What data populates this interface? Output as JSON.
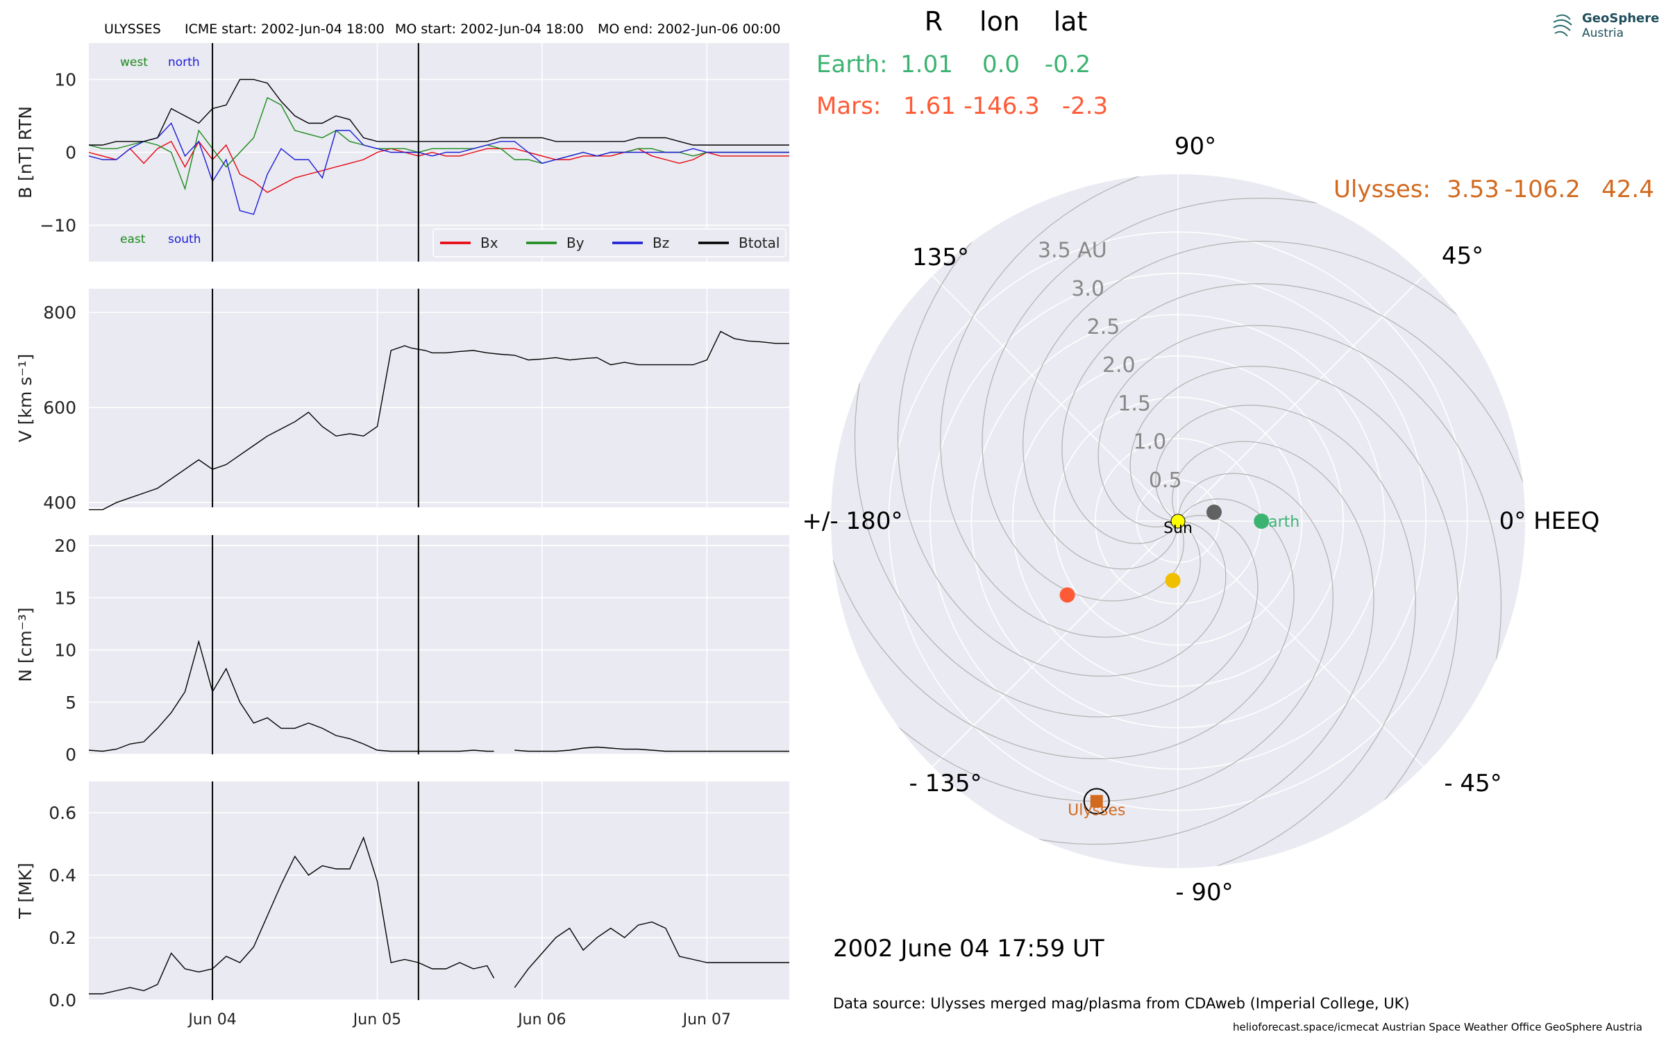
{
  "header": {
    "spacecraft": "ULYSSES",
    "icme_start": "ICME start: 2002-Jun-04 18:00",
    "mo_start": "MO start: 2002-Jun-04 18:00",
    "mo_end": "MO end: 2002-Jun-06 00:00"
  },
  "colors": {
    "panel_bg": "#eaeaf2",
    "grid": "#ffffff",
    "bx": "#e8000b",
    "by": "#1a8a1a",
    "bz": "#1b1bd6",
    "btotal": "#000000",
    "earth": "#3cb371",
    "mars": "#ff5a36",
    "ulysses": "#d2691e",
    "venus": "#f0c000",
    "mercury": "#616161",
    "sun": "#ffff00"
  },
  "chart_data": [
    {
      "type": "line",
      "panel": "magnetic_field",
      "ylabel": "B [nT] RTN",
      "ylim": [
        -15,
        15
      ],
      "yticks": [
        -10,
        0,
        10
      ],
      "xlim": [
        0,
        102
      ],
      "grid": true,
      "corner_labels": {
        "west": "west",
        "north": "north",
        "east": "east",
        "south": "south"
      },
      "legend": {
        "placement": "lower-right",
        "entries": [
          "Bx",
          "By",
          "Bz",
          "Btotal"
        ]
      },
      "x_hours": [
        0,
        2,
        4,
        6,
        8,
        10,
        12,
        14,
        16,
        18,
        20,
        22,
        24,
        26,
        28,
        30,
        32,
        34,
        36,
        38,
        40,
        42,
        44,
        46,
        48,
        50,
        52,
        54,
        56,
        58,
        60,
        62,
        64,
        66,
        68,
        70,
        72,
        74,
        76,
        78,
        80,
        82,
        84,
        86,
        88,
        90,
        92,
        94,
        96,
        98,
        100,
        102
      ],
      "series": [
        {
          "name": "Bx",
          "values": [
            0,
            -0.5,
            -1,
            0.5,
            -1.5,
            0.5,
            1.5,
            -2,
            1.5,
            -1,
            1,
            -3,
            -4,
            -5.5,
            -4.5,
            -3.5,
            -3,
            -2.5,
            -2,
            -1.5,
            -1,
            0,
            0.5,
            0,
            -0.5,
            0,
            -0.5,
            -0.5,
            0,
            0.5,
            0.5,
            0.5,
            0,
            -0.5,
            -1,
            -1,
            -0.5,
            -0.5,
            -0.5,
            0,
            0.5,
            -0.5,
            -1,
            -1.5,
            -1,
            0,
            -0.5,
            -0.5,
            -0.5,
            -0.5,
            -0.5,
            -0.5
          ]
        },
        {
          "name": "By",
          "values": [
            1,
            0.5,
            0.5,
            1,
            1.5,
            1,
            0,
            -5,
            3,
            0.5,
            -2,
            0,
            2,
            7.5,
            6.5,
            3,
            2.5,
            2,
            3,
            1.5,
            1,
            0.5,
            0.5,
            0.5,
            0,
            0.5,
            0.5,
            0.5,
            0.5,
            1,
            0.5,
            -1,
            -1,
            -1.5,
            -1,
            -0.5,
            0,
            -0.5,
            0,
            0,
            0.5,
            0.5,
            0,
            0,
            -0.5,
            0,
            0,
            0,
            0,
            0,
            0,
            0
          ]
        },
        {
          "name": "Bz",
          "values": [
            -0.5,
            -1,
            -1,
            0.5,
            1.5,
            2,
            4,
            -0.5,
            1.5,
            -4,
            -1,
            -8,
            -8.5,
            -3,
            0.5,
            -1,
            -1,
            -3.5,
            3,
            3,
            1,
            0.5,
            0,
            0,
            0,
            -0.5,
            0,
            0,
            0.5,
            1,
            1.5,
            1.5,
            0,
            -1.5,
            -1,
            -0.5,
            0,
            -0.5,
            0,
            0,
            0,
            0,
            0,
            0,
            0.5,
            0,
            0,
            0,
            0,
            0,
            0,
            0
          ]
        },
        {
          "name": "Btotal",
          "values": [
            1,
            1,
            1.5,
            1.5,
            1.5,
            2,
            6,
            5,
            4,
            6,
            6.5,
            10,
            10,
            9.5,
            7,
            5,
            4,
            4,
            5,
            4.5,
            2,
            1.5,
            1.5,
            1.5,
            1.5,
            1.5,
            1.5,
            1.5,
            1.5,
            1.5,
            2,
            2,
            2,
            2,
            1.5,
            1.5,
            1.5,
            1.5,
            1.5,
            1.5,
            2,
            2,
            2,
            1.5,
            1,
            1,
            1,
            1,
            1,
            1,
            1,
            1
          ]
        }
      ]
    },
    {
      "type": "line",
      "panel": "speed",
      "ylabel": "V [km s⁻¹]",
      "ylim": [
        390,
        850
      ],
      "yticks": [
        400,
        600,
        800
      ],
      "xlim": [
        0,
        102
      ],
      "grid": true,
      "series": [
        {
          "name": "V",
          "x": [
            0,
            2,
            4,
            6,
            8,
            10,
            12,
            14,
            16,
            18,
            20,
            22,
            24,
            26,
            28,
            30,
            32,
            34,
            36,
            38,
            40,
            42,
            44,
            46,
            47,
            49,
            50,
            52,
            54,
            56,
            58,
            60,
            62,
            64,
            66,
            68,
            70,
            72,
            74,
            76,
            78,
            80,
            82,
            84,
            86,
            88,
            90,
            92,
            94,
            96,
            98,
            100,
            102
          ],
          "values": [
            385,
            385,
            400,
            410,
            420,
            430,
            450,
            470,
            490,
            470,
            480,
            500,
            520,
            540,
            555,
            570,
            590,
            560,
            540,
            545,
            540,
            560,
            720,
            730,
            725,
            720,
            715,
            715,
            718,
            720,
            715,
            712,
            710,
            700,
            702,
            705,
            700,
            703,
            705,
            690,
            695,
            690,
            690,
            690,
            690,
            690,
            700,
            760,
            745,
            740,
            738,
            735,
            735
          ]
        }
      ],
      "gap_after_hour": 59
    },
    {
      "type": "line",
      "panel": "density",
      "ylabel": "N [cm⁻³]",
      "ylim": [
        0,
        21
      ],
      "yticks": [
        0,
        5,
        10,
        15,
        20
      ],
      "xlim": [
        0,
        102
      ],
      "grid": true,
      "series": [
        {
          "name": "N",
          "x": [
            0,
            2,
            4,
            6,
            8,
            10,
            12,
            14,
            16,
            18,
            20,
            22,
            24,
            26,
            28,
            30,
            32,
            34,
            36,
            38,
            40,
            42,
            44,
            46,
            48,
            50,
            52,
            54,
            56,
            58,
            59,
            62,
            64,
            66,
            68,
            70,
            72,
            74,
            76,
            78,
            80,
            82,
            84,
            86,
            88,
            90,
            92,
            94,
            96,
            98,
            100,
            102
          ],
          "values": [
            0.4,
            0.3,
            0.5,
            1,
            1.2,
            2.5,
            4,
            6,
            10.8,
            6,
            8.2,
            5,
            3,
            3.5,
            2.5,
            2.5,
            3,
            2.5,
            1.8,
            1.5,
            1,
            0.4,
            0.3,
            0.3,
            0.3,
            0.3,
            0.3,
            0.3,
            0.4,
            0.3,
            0.3,
            0.4,
            0.3,
            0.3,
            0.3,
            0.4,
            0.6,
            0.7,
            0.6,
            0.5,
            0.5,
            0.4,
            0.3,
            0.3,
            0.3,
            0.3,
            0.3,
            0.3,
            0.3,
            0.3,
            0.3,
            0.3
          ]
        }
      ],
      "gap_after_hour": 59
    },
    {
      "type": "line",
      "panel": "temperature",
      "ylabel": "T [MK]",
      "ylim": [
        0,
        0.7
      ],
      "yticks": [
        0.0,
        0.2,
        0.4,
        0.6
      ],
      "xlim": [
        0,
        102
      ],
      "grid": true,
      "xtick_labels": [
        "Jun 04",
        "Jun 05",
        "Jun 06",
        "Jun 07"
      ],
      "xtick_hours": [
        18,
        42,
        66,
        90
      ],
      "series": [
        {
          "name": "T",
          "x": [
            0,
            2,
            4,
            6,
            8,
            10,
            12,
            14,
            16,
            18,
            20,
            22,
            24,
            26,
            28,
            30,
            32,
            34,
            36,
            38,
            40,
            42,
            44,
            46,
            48,
            50,
            52,
            54,
            56,
            58,
            59,
            62,
            64,
            66,
            68,
            70,
            72,
            74,
            76,
            78,
            80,
            82,
            84,
            86,
            88,
            90,
            92,
            94,
            96,
            98,
            100,
            102
          ],
          "values": [
            0.02,
            0.02,
            0.03,
            0.04,
            0.03,
            0.05,
            0.15,
            0.1,
            0.09,
            0.1,
            0.14,
            0.12,
            0.17,
            0.27,
            0.37,
            0.46,
            0.4,
            0.43,
            0.42,
            0.42,
            0.52,
            0.38,
            0.12,
            0.13,
            0.12,
            0.1,
            0.1,
            0.12,
            0.1,
            0.11,
            0.07,
            0.04,
            0.1,
            0.15,
            0.2,
            0.23,
            0.16,
            0.2,
            0.23,
            0.2,
            0.24,
            0.25,
            0.23,
            0.14,
            0.13,
            0.12,
            0.12,
            0.12,
            0.12,
            0.12,
            0.12,
            0.12
          ]
        }
      ],
      "gap_after_hour": 59
    },
    {
      "type": "scatter",
      "panel": "polar_position",
      "projection": "polar",
      "radial_ticks": [
        "0.5",
        "1.0",
        "1.5",
        "2.0",
        "2.5",
        "3.0",
        "3.5 AU"
      ],
      "radial_values": [
        0.5,
        1.0,
        1.5,
        2.0,
        2.5,
        3.0,
        3.5
      ],
      "angle_labels": {
        "0": "0° HEEQ",
        "45": "45°",
        "90": "90°",
        "135": "135°",
        "180": "+/- 180°",
        "-135": "- 135°",
        "-90": "- 90°",
        "-45": "- 45°"
      },
      "table_headers": [
        "R",
        "lon",
        "lat"
      ],
      "bodies": [
        {
          "name": "Earth",
          "r": 1.01,
          "lon": 0.0,
          "lat": -0.2,
          "r_text": "1.01",
          "lon_text": "0.0",
          "lat_text": "-0.2",
          "marker": "circle",
          "label": "Earth"
        },
        {
          "name": "Mars",
          "r": 1.61,
          "lon": -146.3,
          "lat": -2.3,
          "r_text": "1.61",
          "lon_text": "-146.3",
          "lat_text": "-2.3",
          "marker": "circle"
        },
        {
          "name": "Ulysses",
          "r": 3.53,
          "lon": -106.2,
          "lat": 42.4,
          "r_text": "3.53",
          "lon_text": "-106.2",
          "lat_text": "42.4",
          "marker": "square",
          "label": "Ulysses"
        },
        {
          "name": "Venus",
          "r": 0.72,
          "lon": -95,
          "marker": "circle"
        },
        {
          "name": "Mercury",
          "r": 0.45,
          "lon": 14,
          "marker": "circle"
        },
        {
          "name": "Sun",
          "r": 0,
          "lon": 0,
          "marker": "circle",
          "label": "Sun"
        }
      ]
    }
  ],
  "labels": {
    "earth_row": "Earth:",
    "mars_row": "Mars:",
    "ulysses_row": "Ulysses:",
    "date": "2002 June 04  17:59 UT",
    "data_source": "Data source: Ulysses merged mag/plasma from CDAweb (Imperial College, UK)",
    "footer": "helioforecast.space/icmecat   Austrian Space Weather Office   GeoSphere Austria",
    "logo_line1": "GeoSphere",
    "logo_line2": "Austria"
  }
}
